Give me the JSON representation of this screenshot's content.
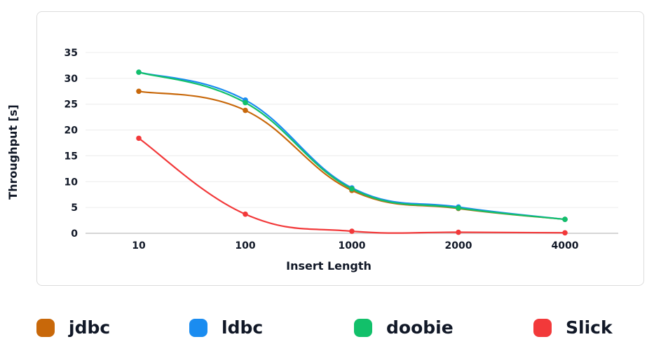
{
  "chart_data": {
    "type": "line",
    "xlabel": "Insert Length",
    "ylabel": "Throughput [s]",
    "categories": [
      "10",
      "100",
      "1000",
      "2000",
      "4000"
    ],
    "yticks": [
      "0",
      "5",
      "10",
      "15",
      "20",
      "25",
      "30",
      "35"
    ],
    "ylim": [
      0,
      35
    ],
    "grid": true,
    "legend_position": "bottom",
    "series": [
      {
        "name": "jdbc",
        "color": "#c8680a",
        "values": [
          27.5,
          23.8,
          8.3,
          4.8,
          2.7
        ]
      },
      {
        "name": "ldbc",
        "color": "#1a8cf0",
        "values": [
          31.2,
          25.8,
          8.8,
          5.1,
          2.7
        ]
      },
      {
        "name": "doobie",
        "color": "#12c06a",
        "values": [
          31.2,
          25.3,
          8.6,
          4.9,
          2.7
        ]
      },
      {
        "name": "Slick",
        "color": "#f2393a",
        "values": [
          18.4,
          3.7,
          0.4,
          0.2,
          0.1
        ]
      }
    ]
  }
}
